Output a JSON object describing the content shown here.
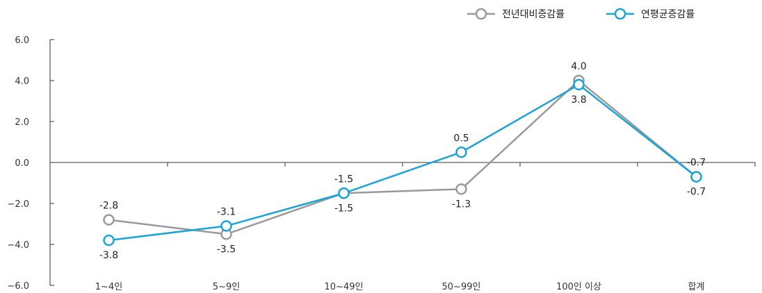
{
  "chart_data": {
    "type": "line",
    "categories": [
      "1~4인",
      "5~9인",
      "10~49인",
      "50~99인",
      "100인 이상",
      "합계"
    ],
    "series": [
      {
        "name": "전년대비증감률",
        "values": [
          -2.8,
          -3.5,
          -1.5,
          -1.3,
          4.0,
          -0.7
        ],
        "labels": [
          "-2.8",
          "-3.5",
          "-1.5",
          "-1.3",
          "4.0",
          "-0.7"
        ],
        "label_position": [
          "above",
          "below",
          "below",
          "below",
          "above",
          "above"
        ],
        "color": "#999999"
      },
      {
        "name": "연평균증감률",
        "values": [
          -3.8,
          -3.1,
          -1.5,
          0.5,
          3.8,
          -0.7
        ],
        "labels": [
          "-3.8",
          "-3.1",
          "-1.5",
          "0.5",
          "3.8",
          "-0.7"
        ],
        "label_position": [
          "below",
          "above",
          "above",
          "above",
          "below",
          "below"
        ],
        "color": "#1aa3d9"
      }
    ],
    "ylim": [
      -6.0,
      6.0
    ],
    "yticks": [
      6.0,
      4.0,
      2.0,
      0.0,
      -2.0,
      -4.0,
      -6.0
    ],
    "ytick_labels": [
      "6.0",
      "4.0",
      "2.0",
      "0.0",
      "−2.0",
      "−4.0",
      "−6.0"
    ],
    "legend_position": "top-right",
    "grid": false
  }
}
